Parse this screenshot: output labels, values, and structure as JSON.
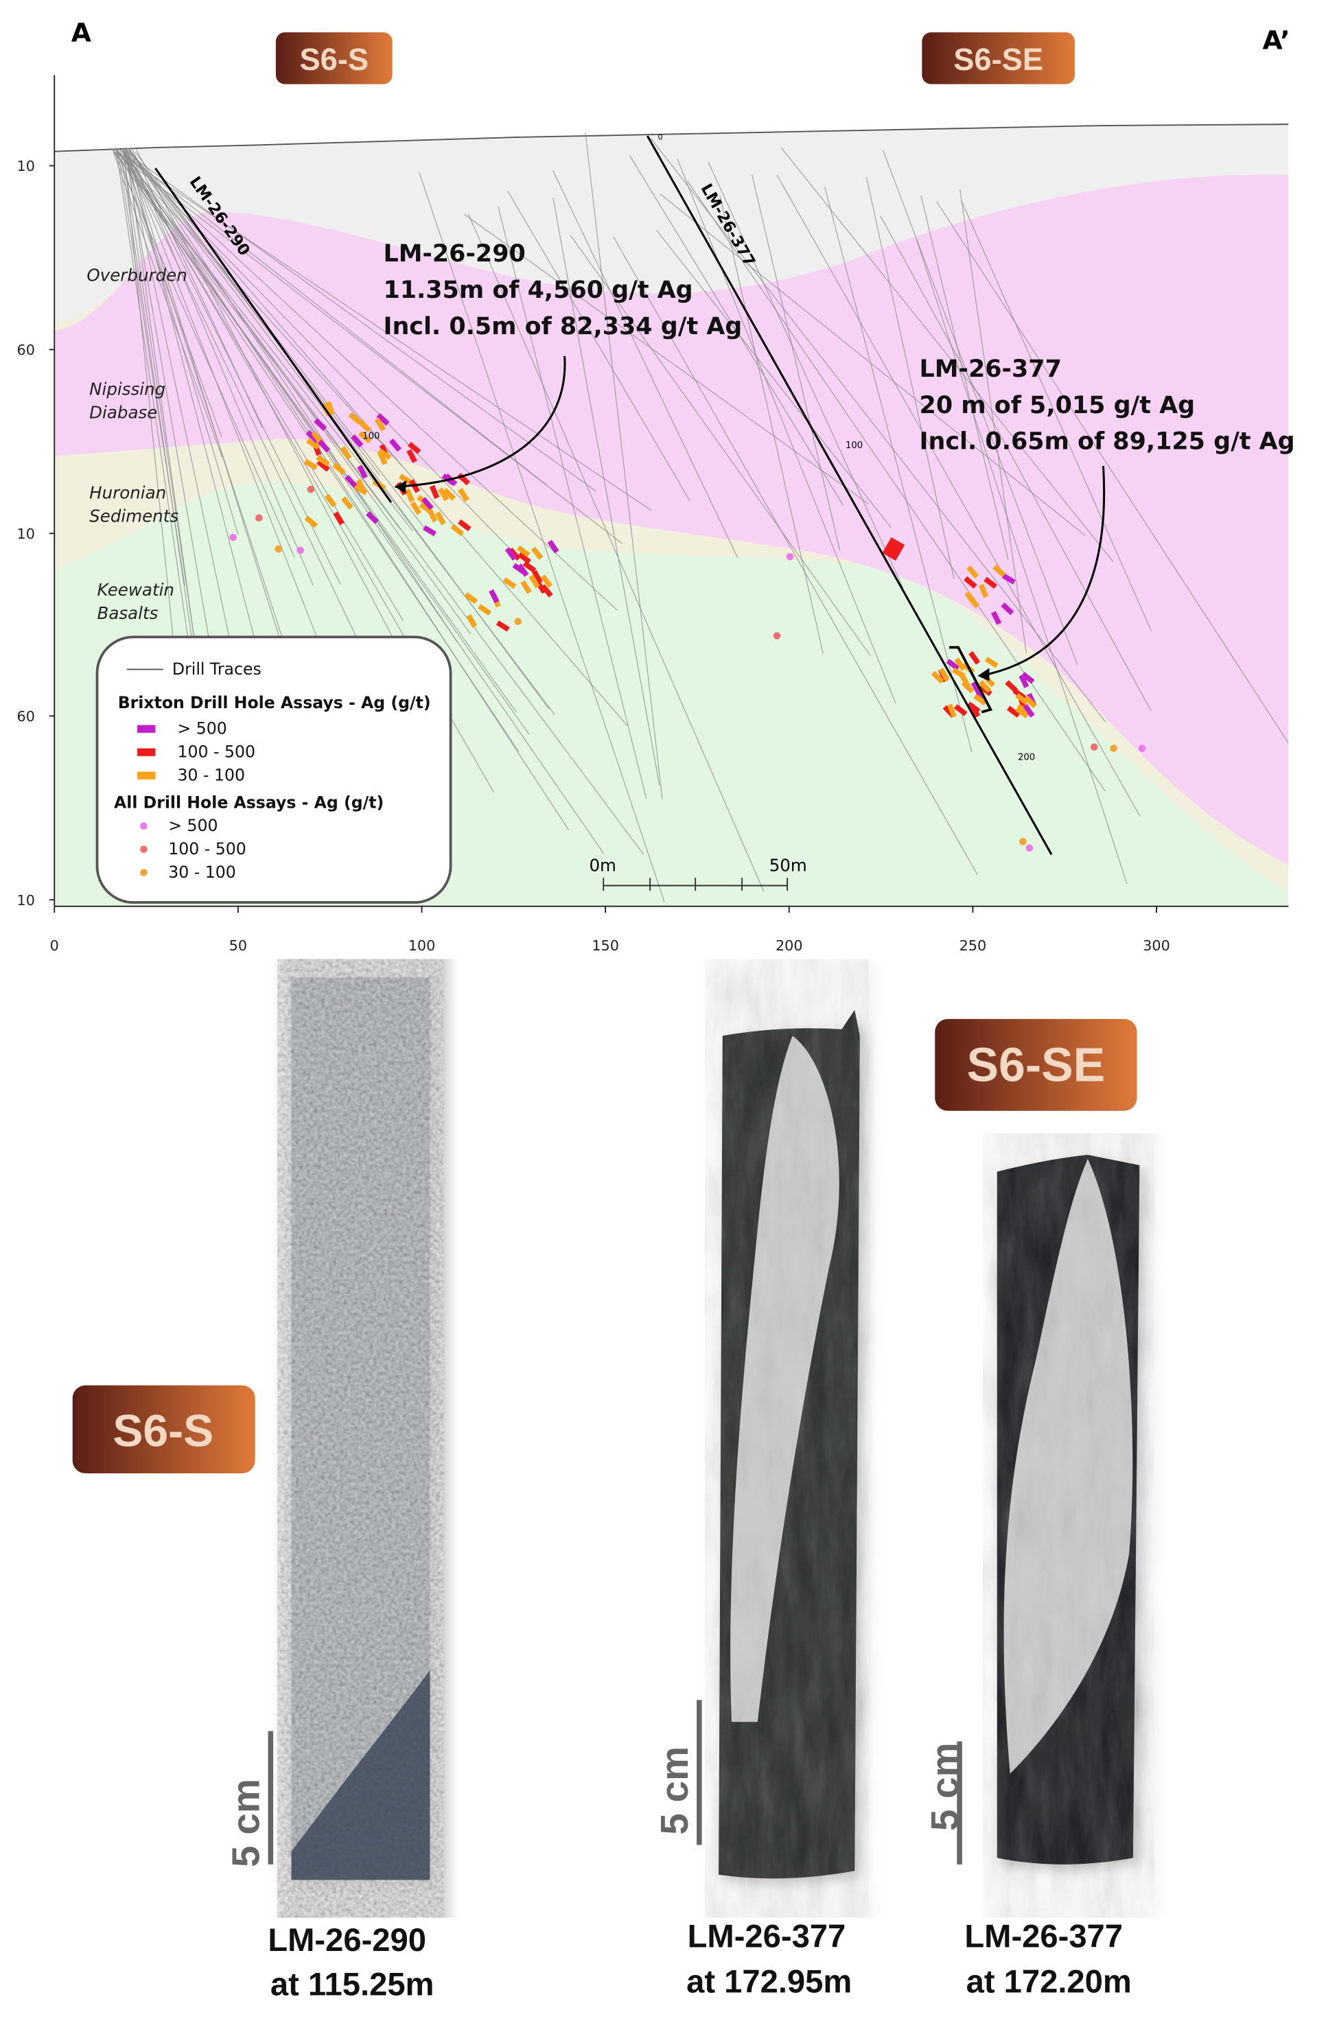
{
  "header": {
    "left_marker": "A",
    "right_marker": "A’",
    "badges": [
      "S6-S",
      "S6-SE"
    ]
  },
  "section": {
    "x_ticks": [
      0,
      50,
      100,
      150,
      200,
      250,
      300
    ],
    "y_ticks": [
      "10",
      "60",
      "10",
      "60",
      "10"
    ],
    "layers": [
      [
        "Overburden"
      ],
      [
        "Nipissing",
        "Diabase"
      ],
      [
        "Huronian",
        "Sediments"
      ],
      [
        "Keewatin",
        "Basalts"
      ]
    ],
    "holes": [
      "LM-26-290",
      "LM-26-377"
    ],
    "depth_marks": [
      "0",
      "100",
      "100",
      "200"
    ],
    "callouts": [
      {
        "lines": [
          "LM-26-290",
          "11.35m of 4,560 g/t Ag",
          "Incl. 0.5m of 82,334 g/t Ag"
        ]
      },
      {
        "lines": [
          "LM-26-377",
          "20 m of 5,015 g/t Ag",
          "Incl. 0.65m of 89,125 g/t Ag"
        ]
      }
    ],
    "scale_bar": [
      "0m",
      "50m"
    ],
    "legend": {
      "traces": "Drill Traces",
      "brixton": {
        "title": "Brixton Drill Hole Assays - Ag (g/t)",
        "items": [
          {
            "label": "> 500",
            "color": "#c21fc9"
          },
          {
            "label": "100 - 500",
            "color": "#ee1c1c"
          },
          {
            "label": "30 - 100",
            "color": "#f7a21b"
          }
        ]
      },
      "all": {
        "title": "All Drill Hole Assays - Ag (g/t)",
        "items": [
          {
            "label": "> 500",
            "color": "#e97be9"
          },
          {
            "label": "100 - 500",
            "color": "#ee6f6f"
          },
          {
            "label": "30 - 100",
            "color": "#f0a534"
          }
        ]
      }
    }
  },
  "cores": {
    "badges": [
      "S6-S",
      "S6-SE"
    ],
    "scale": "5 cm",
    "captions": [
      [
        "LM-26-290",
        "at 115.25m"
      ],
      [
        "LM-26-377",
        "at 172.95m"
      ],
      [
        "LM-26-377",
        "at 172.20m"
      ]
    ]
  }
}
